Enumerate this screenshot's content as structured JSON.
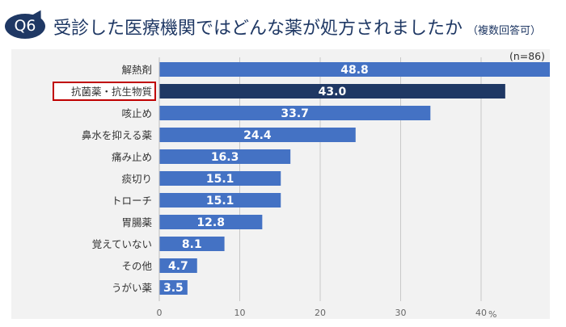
{
  "header": {
    "badge": "Q6",
    "title": "受診した医療機関ではどんな薬が処方されましたか",
    "subtitle": "（複数回答可）"
  },
  "chart_data": {
    "type": "bar",
    "orientation": "horizontal",
    "note": "(n=86)",
    "unit": "%",
    "categories": [
      "解熱剤",
      "抗菌薬・抗生物質",
      "咳止め",
      "鼻水を抑える薬",
      "痛み止め",
      "痰切り",
      "トローチ",
      "胃腸薬",
      "覚えていない",
      "その他",
      "うがい薬"
    ],
    "values": [
      48.8,
      43.0,
      33.7,
      24.4,
      16.3,
      15.1,
      15.1,
      12.8,
      8.1,
      4.7,
      3.5
    ],
    "highlight_index": 1,
    "xlim": [
      0,
      48
    ],
    "xticks": [
      0,
      10,
      20,
      30,
      40
    ],
    "grid": true,
    "colors": {
      "bar": "#4472c4",
      "highlight": "#1f3864",
      "highlight_border": "#c00000"
    }
  }
}
